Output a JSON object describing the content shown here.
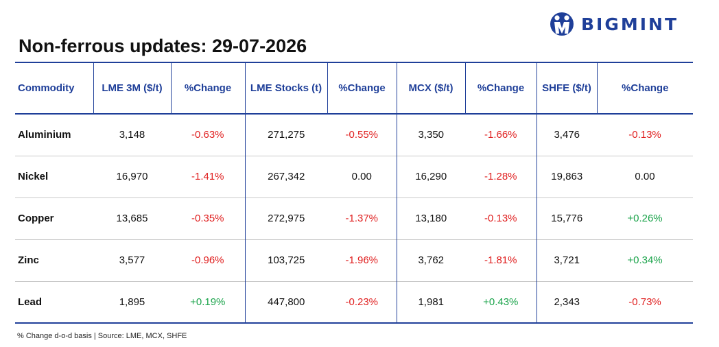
{
  "brand": {
    "name": "BIGMINT",
    "color": "#1f3f99"
  },
  "title": "Non-ferrous updates: 29-07-2026",
  "colors": {
    "header": "#1f3f99",
    "negative": "#e02020",
    "positive": "#1aa34a",
    "neutral": "#111111"
  },
  "table": {
    "headers": [
      "Commodity",
      "LME 3M ($/t)",
      "%Change",
      "LME Stocks (t)",
      "%Change",
      "MCX ($/t)",
      "%Change",
      "SHFE ($/t)",
      "%Change"
    ],
    "rows": [
      {
        "commodity": "Aluminium",
        "lme3m": "3,148",
        "lme3m_chg": "-0.63%",
        "stocks": "271,275",
        "stocks_chg": "-0.55%",
        "mcx": "3,350",
        "mcx_chg": "-1.66%",
        "shfe": "3,476",
        "shfe_chg": "-0.13%"
      },
      {
        "commodity": "Nickel",
        "lme3m": "16,970",
        "lme3m_chg": "-1.41%",
        "stocks": "267,342",
        "stocks_chg": "0.00",
        "mcx": "16,290",
        "mcx_chg": "-1.28%",
        "shfe": "19,863",
        "shfe_chg": "0.00"
      },
      {
        "commodity": "Copper",
        "lme3m": "13,685",
        "lme3m_chg": "-0.35%",
        "stocks": "272,975",
        "stocks_chg": "-1.37%",
        "mcx": "13,180",
        "mcx_chg": "-0.13%",
        "shfe": "15,776",
        "shfe_chg": "+0.26%"
      },
      {
        "commodity": "Zinc",
        "lme3m": "3,577",
        "lme3m_chg": "-0.96%",
        "stocks": "103,725",
        "stocks_chg": "-1.96%",
        "mcx": "3,762",
        "mcx_chg": "-1.81%",
        "shfe": "3,721",
        "shfe_chg": "+0.34%"
      },
      {
        "commodity": "Lead",
        "lme3m": "1,895",
        "lme3m_chg": "+0.19%",
        "stocks": "447,800",
        "stocks_chg": "-0.23%",
        "mcx": "1,981",
        "mcx_chg": "+0.43%",
        "shfe": "2,343",
        "shfe_chg": "-0.73%"
      }
    ]
  },
  "footnote": "% Change d-o-d basis | Source: LME, MCX, SHFE"
}
